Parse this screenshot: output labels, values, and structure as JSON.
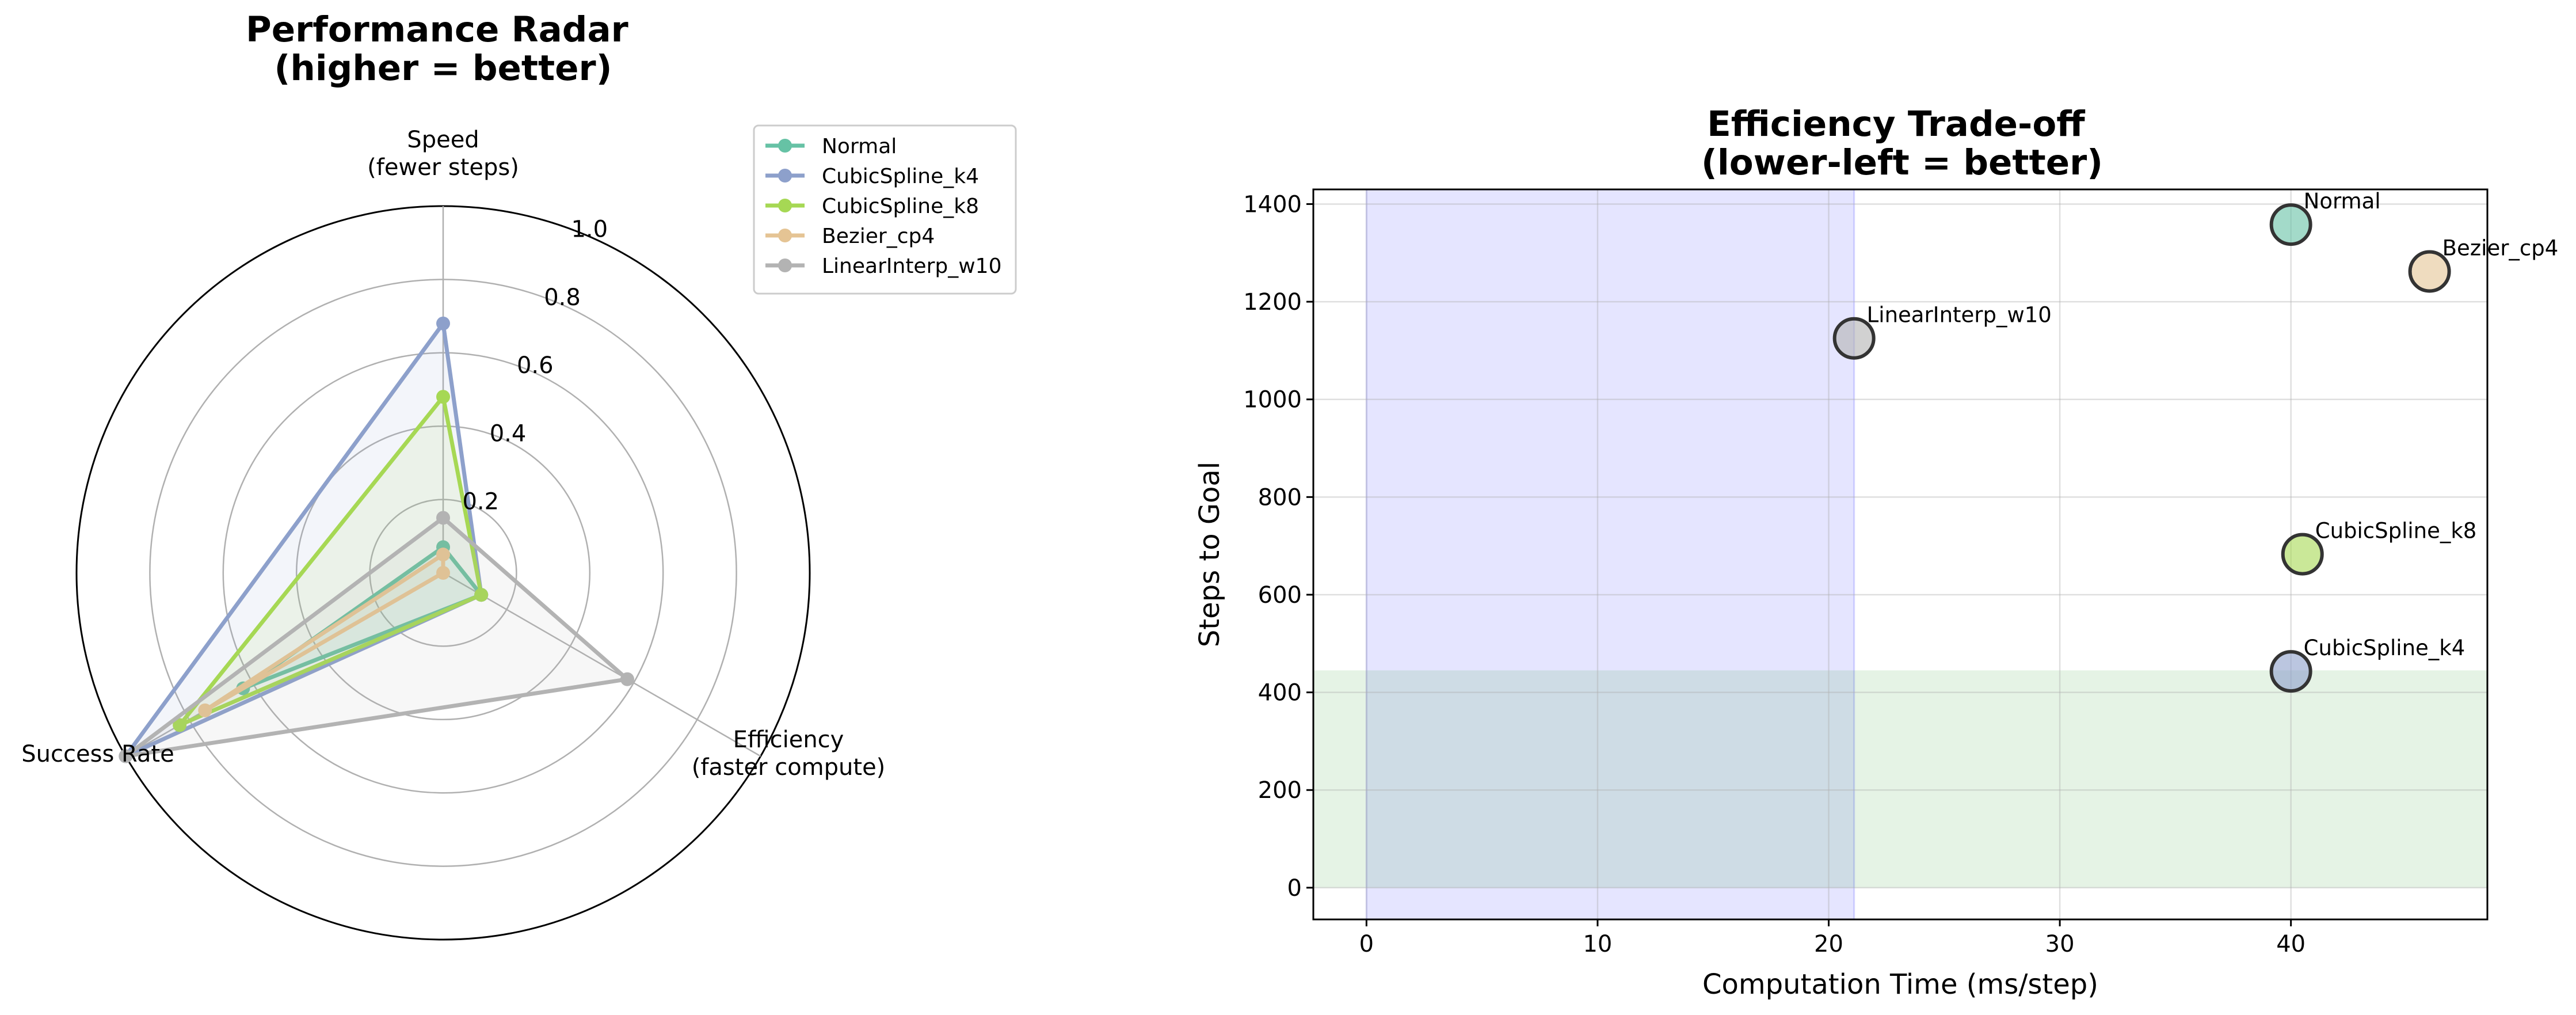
{
  "chart_data": [
    {
      "type": "radar",
      "title_lines": [
        "Performance Radar",
        "(higher = better)"
      ],
      "axes": [
        {
          "label_lines": [
            "Speed",
            "(fewer steps)"
          ]
        },
        {
          "label_lines": [
            "Efficiency",
            "(faster compute)"
          ]
        },
        {
          "label_lines": [
            "Success Rate"
          ]
        }
      ],
      "rlim": [
        0,
        1
      ],
      "rticks": [
        0.2,
        0.4,
        0.6,
        0.8,
        1.0
      ],
      "rtick_labels": [
        "0.2",
        "0.4",
        "0.6",
        "0.8",
        "1.0"
      ],
      "grid": true,
      "legend_placement": "upper-right-outside",
      "series": [
        {
          "name": "Normal",
          "color": "#66c2a5",
          "values": [
            0.07,
            0.12,
            0.63
          ]
        },
        {
          "name": "CubicSpline_k4",
          "color": "#8da0cb",
          "values": [
            0.68,
            0.12,
            1.0
          ]
        },
        {
          "name": "CubicSpline_k8",
          "color": "#a6d854",
          "values": [
            0.48,
            0.12,
            0.83
          ]
        },
        {
          "name": "Bezier_cp4",
          "color": "#e5c494",
          "values": [
            0.05,
            0.0,
            0.75
          ]
        },
        {
          "name": "LinearInterp_w10",
          "color": "#b3b3b3",
          "values": [
            0.15,
            0.58,
            1.0
          ]
        }
      ]
    },
    {
      "type": "scatter",
      "title_lines": [
        "Efficiency Trade-off",
        "(lower-left = better)"
      ],
      "xlabel": "Computation Time (ms/step)",
      "ylabel": "Steps to Goal",
      "xlim": [
        -2.3,
        48.5
      ],
      "ylim": [
        -65,
        1430
      ],
      "xticks": [
        0,
        10,
        20,
        30,
        40
      ],
      "yticks": [
        0,
        200,
        400,
        600,
        800,
        1000,
        1200,
        1400
      ],
      "grid": true,
      "shaded_regions": [
        {
          "axis": "x",
          "from": 0,
          "to": 21.1,
          "color": "#0000ff",
          "opacity": 0.1
        },
        {
          "axis": "y",
          "from": 0,
          "to": 445,
          "color": "#2ca02c",
          "opacity": 0.12
        }
      ],
      "points": [
        {
          "name": "Normal",
          "x": 40.0,
          "y": 1358,
          "color": "#66c2a5"
        },
        {
          "name": "Bezier_cp4",
          "x": 46.0,
          "y": 1262,
          "color": "#e5c494"
        },
        {
          "name": "LinearInterp_w10",
          "x": 21.1,
          "y": 1125,
          "color": "#b3b3b3"
        },
        {
          "name": "CubicSpline_k8",
          "x": 40.5,
          "y": 683,
          "color": "#a6d854"
        },
        {
          "name": "CubicSpline_k4",
          "x": 40.0,
          "y": 443,
          "color": "#8da0cb"
        }
      ]
    }
  ]
}
